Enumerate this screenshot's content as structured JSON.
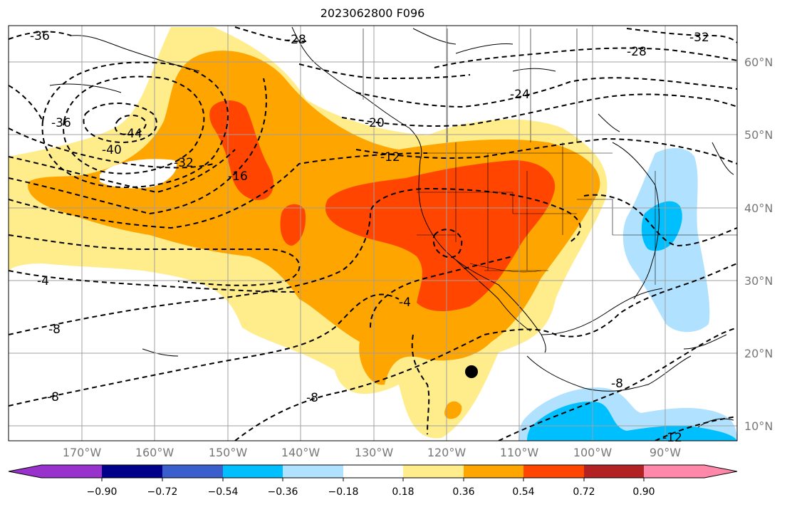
{
  "title": "2023062800 F096",
  "lat_labels": [
    "60°N",
    "50°N",
    "40°N",
    "30°N",
    "20°N",
    "10°N"
  ],
  "lon_labels": [
    "170°W",
    "160°W",
    "150°W",
    "140°W",
    "130°W",
    "120°W",
    "110°W",
    "100°W",
    "90°W"
  ],
  "contour_labels": [
    "-36",
    "-28",
    "-32",
    "-44",
    "-40",
    "-32",
    "-36",
    "-28",
    "-24",
    "-20",
    "-16",
    "-12",
    "-4",
    "-8",
    "-8",
    "-8",
    "-4",
    "-12",
    "-8"
  ],
  "colorbar": {
    "ticks": [
      "−0.90",
      "−0.72",
      "−0.54",
      "−0.36",
      "−0.18",
      "0.18",
      "0.36",
      "0.54",
      "0.72",
      "0.90"
    ],
    "colors": [
      "#9932cc",
      "#00008b",
      "#3a5fcd",
      "#00bfff",
      "#b0e2ff",
      "#ffffff",
      "#ffec8b",
      "#ffa500",
      "#ff4500",
      "#b22222",
      "#ff88aa"
    ]
  },
  "marker": "storm-center-dot"
}
